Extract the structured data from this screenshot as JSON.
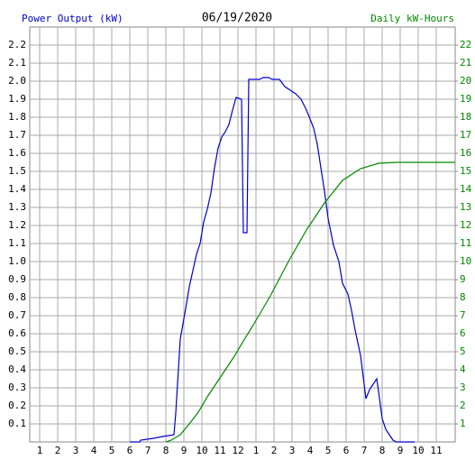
{
  "chart_data": {
    "type": "line",
    "title": "06/19/2020",
    "y_label": "Power Output (kW)",
    "y2_label": "Daily kW-Hours",
    "xlim": [
      0.45,
      24.05
    ],
    "xticks": [
      1,
      2,
      3,
      4,
      5,
      6,
      7,
      8,
      9,
      10,
      11,
      12,
      {
        "value": 13,
        "label": "1"
      },
      {
        "value": 14,
        "label": "2"
      },
      {
        "value": 15,
        "label": "3"
      },
      {
        "value": 16,
        "label": "4"
      },
      {
        "value": 17,
        "label": "5"
      },
      {
        "value": 18,
        "label": "6"
      },
      {
        "value": 19,
        "label": "7"
      },
      {
        "value": 20,
        "label": "8"
      },
      {
        "value": 21,
        "label": "9"
      },
      {
        "value": 22,
        "label": "10"
      },
      {
        "value": 23,
        "label": "11"
      }
    ],
    "ylim": [
      0,
      2.3
    ],
    "yticks": [
      0.1,
      0.2,
      0.3,
      0.4,
      0.5,
      0.6,
      0.7,
      0.8,
      0.9,
      {
        "value": 1,
        "label": "1.0"
      },
      1.1,
      1.2,
      1.3,
      1.4,
      1.5,
      1.6,
      1.7,
      1.8,
      1.9,
      {
        "value": 2,
        "label": "2.0"
      },
      2.1,
      2.2
    ],
    "y2lim": [
      0,
      23
    ],
    "y2ticks": [
      1,
      2,
      3,
      4,
      5,
      6,
      7,
      8,
      9,
      10,
      11,
      12,
      13,
      14,
      15,
      16,
      17,
      18,
      19,
      20,
      21,
      22
    ],
    "grid": true,
    "series": [
      {
        "name": "Power Output (kW)",
        "color": "#0000cc",
        "x": [
          6.0,
          6.55,
          6.6,
          7.3,
          7.8,
          8.45,
          8.55,
          8.8,
          9.1,
          9.3,
          9.5,
          9.7,
          9.9,
          10.1,
          10.3,
          10.5,
          10.7,
          10.9,
          11.1,
          11.3,
          11.5,
          11.7,
          11.9,
          12.2,
          12.3,
          12.5,
          12.6,
          13.2,
          13.4,
          13.7,
          13.9,
          14.3,
          14.6,
          14.9,
          15.2,
          15.5,
          15.8,
          16.0,
          16.2,
          16.4,
          16.6,
          16.8,
          17.0,
          17.3,
          17.6,
          17.8,
          18.1,
          18.3,
          18.5,
          18.8,
          19.1,
          19.3,
          19.5,
          19.7,
          19.8,
          20.0,
          20.2,
          20.4,
          20.6,
          20.8,
          21.8
        ],
        "values": [
          0,
          0,
          0.01,
          0.02,
          0.03,
          0.04,
          0.16,
          0.57,
          0.74,
          0.86,
          0.95,
          1.04,
          1.1,
          1.22,
          1.29,
          1.38,
          1.52,
          1.63,
          1.69,
          1.72,
          1.76,
          1.84,
          1.91,
          1.9,
          1.16,
          1.16,
          2.01,
          2.01,
          2.02,
          2.02,
          2.01,
          2.01,
          1.97,
          1.95,
          1.93,
          1.9,
          1.84,
          1.79,
          1.74,
          1.65,
          1.52,
          1.39,
          1.24,
          1.09,
          1.0,
          0.88,
          0.82,
          0.73,
          0.62,
          0.48,
          0.24,
          0.29,
          0.32,
          0.35,
          0.28,
          0.13,
          0.07,
          0.04,
          0.01,
          0,
          0
        ]
      },
      {
        "name": "Daily kW-Hours",
        "color": "#008800",
        "axis": "y2",
        "x": [
          8.0,
          8.3,
          8.8,
          9.3,
          9.8,
          10.3,
          10.8,
          11.3,
          11.8,
          12.3,
          12.8,
          13.3,
          13.8,
          14.8,
          15.8,
          16.8,
          17.8,
          18.8,
          19.8,
          20.8,
          24.05
        ],
        "values": [
          0,
          0.1,
          0.4,
          1.0,
          1.65,
          2.5,
          3.25,
          4.0,
          4.75,
          5.6,
          6.4,
          7.25,
          8.1,
          10.0,
          11.75,
          13.25,
          14.5,
          15.15,
          15.45,
          15.5,
          15.5
        ]
      }
    ]
  }
}
